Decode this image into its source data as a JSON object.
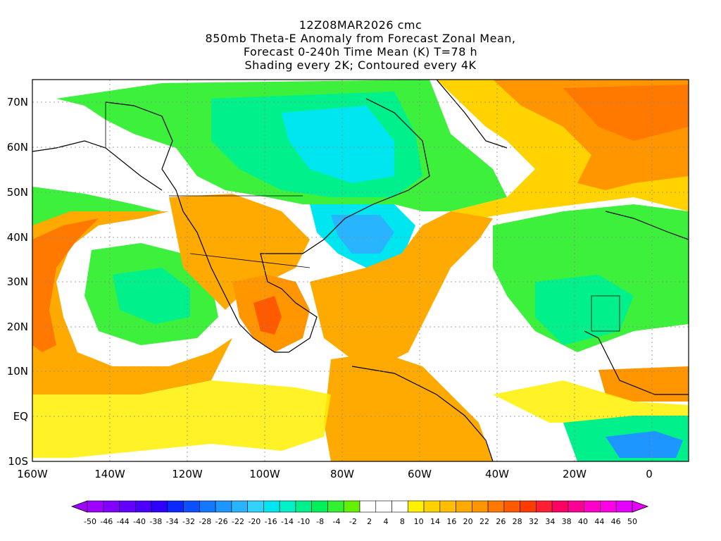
{
  "title": {
    "line1": "12Z08MAR2026 cmc",
    "line2": "850mb Theta-E Anomaly from Forecast Zonal Mean,",
    "line3": "Forecast 0-240h Time Mean (K) T=78 h",
    "line4": "Shading every 2K; Contoured every 4K"
  },
  "axes": {
    "lat_labels": [
      "70N",
      "60N",
      "50N",
      "40N",
      "30N",
      "20N",
      "10N",
      "EQ",
      "10S"
    ],
    "lon_labels": [
      "160W",
      "140W",
      "120W",
      "100W",
      "80W",
      "60W",
      "40W",
      "20W",
      "0"
    ]
  },
  "colorbar": {
    "labels": [
      "-50",
      "-46",
      "-44",
      "-40",
      "-38",
      "-34",
      "-32",
      "-28",
      "-26",
      "-22",
      "-20",
      "-16",
      "-14",
      "-10",
      "-8",
      "-4",
      "-2",
      "2",
      "4",
      "8",
      "10",
      "14",
      "16",
      "20",
      "22",
      "26",
      "28",
      "32",
      "34",
      "38",
      "40",
      "44",
      "46",
      "50"
    ],
    "colors": [
      "#a000ff",
      "#8200ff",
      "#6400ff",
      "#4b00ff",
      "#2d00ff",
      "#0a28ff",
      "#0a50ff",
      "#1478ff",
      "#1e96ff",
      "#28b4ff",
      "#32d2ff",
      "#00e6f0",
      "#00f0c8",
      "#00f08c",
      "#00f05a",
      "#32f032",
      "#64f000",
      "#ffffff",
      "#ffffff",
      "#ffffff",
      "#fff000",
      "#ffd200",
      "#ffbe00",
      "#ffaa00",
      "#ff9600",
      "#ff7800",
      "#ff5a00",
      "#ff3c00",
      "#ff1e32",
      "#ff0064",
      "#ff0096",
      "#ff00c8",
      "#ff00e6",
      "#e600ff"
    ]
  },
  "colors": {
    "cold": "#00e6f0",
    "cool": "#00f08c",
    "neutral": "#ffffff",
    "warm_light": "#ffe600",
    "warm_mid": "#ffaa00",
    "warm_strong": "#ff7800"
  }
}
